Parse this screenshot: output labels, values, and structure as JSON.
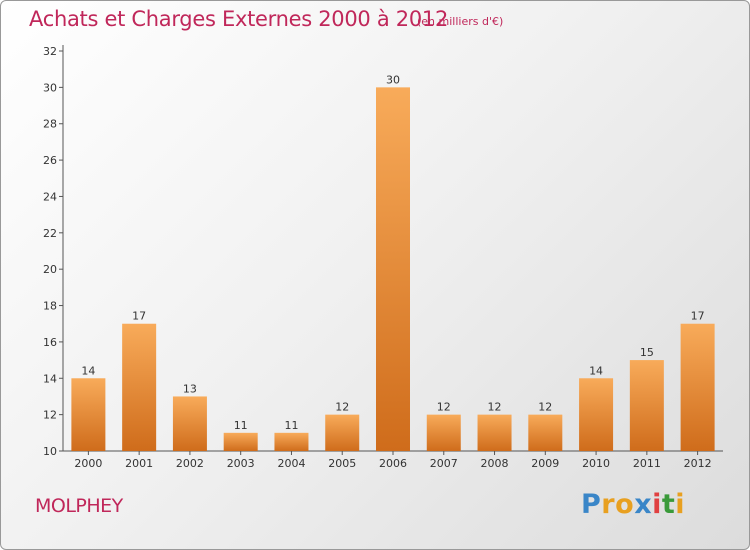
{
  "header": {
    "title": "Achats et Charges Externes 2000 à 2012",
    "subtitle": "(en milliers d'€)"
  },
  "footer": {
    "commune": "MOLPHEY",
    "logo_letters": [
      "P",
      "r",
      "o",
      "x",
      "i",
      "t",
      "i"
    ],
    "logo_colors": [
      "#3a86c8",
      "#e8a020",
      "#e8a020",
      "#3a86c8",
      "#e04040",
      "#3a9a3a",
      "#e8a020"
    ]
  },
  "colors": {
    "bar_light": "#f6a552",
    "bar_dark": "#d2701e",
    "text": "#c0275a",
    "axis": "#555555"
  },
  "chart_data": {
    "type": "bar",
    "title": "Achats et Charges Externes 2000 à 2012",
    "subtitle": "(en milliers d'€)",
    "categories": [
      "2000",
      "2001",
      "2002",
      "2003",
      "2004",
      "2005",
      "2006",
      "2007",
      "2008",
      "2009",
      "2010",
      "2011",
      "2012"
    ],
    "values": [
      14,
      17,
      13,
      11,
      11,
      12,
      30,
      12,
      12,
      12,
      14,
      15,
      17
    ],
    "ylim": [
      10,
      32
    ],
    "yticks": [
      10,
      12,
      14,
      16,
      18,
      20,
      22,
      24,
      26,
      28,
      30,
      32
    ],
    "grid": false,
    "legend": "none"
  }
}
